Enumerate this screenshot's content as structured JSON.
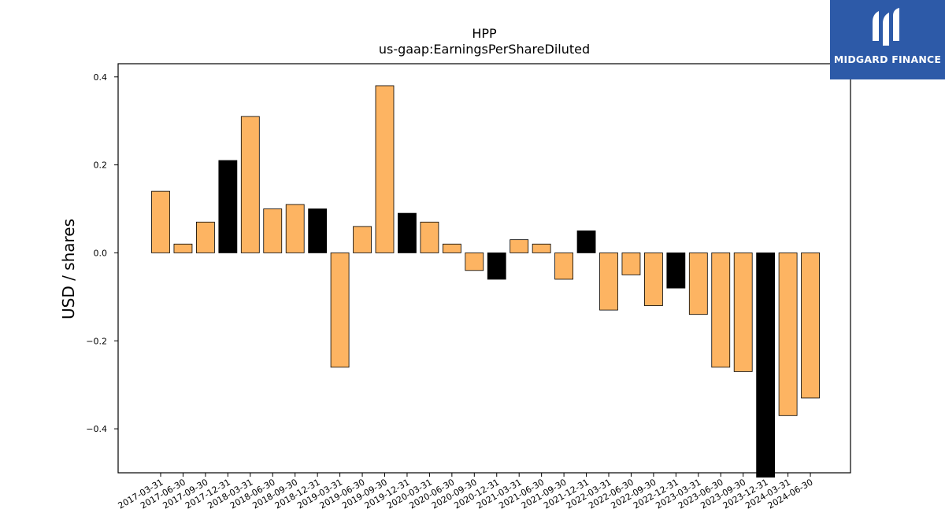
{
  "logo": {
    "text": "MIDGARD FINANCE",
    "icon": "midgard-logo-icon",
    "background": "#2d5aa8"
  },
  "chart_data": {
    "type": "bar",
    "title": "HPP",
    "subtitle": "us-gaap:EarningsPerShareDiluted",
    "xlabel": "",
    "ylabel": "USD / shares",
    "ylim": [
      -0.5,
      0.43
    ],
    "yticks": [
      -0.4,
      -0.2,
      0.0,
      0.2,
      0.4
    ],
    "ytick_labels": [
      "−0.4",
      "−0.2",
      "0.0",
      "0.2",
      "0.4"
    ],
    "grid": false,
    "colors": {
      "quarter": "#fdb462",
      "year_end": "#000000",
      "edge": "#000000"
    },
    "categories": [
      "2017-03-31",
      "2017-06-30",
      "2017-09-30",
      "2017-12-31",
      "2018-03-31",
      "2018-06-30",
      "2018-09-30",
      "2018-12-31",
      "2019-03-31",
      "2019-06-30",
      "2019-09-30",
      "2019-12-31",
      "2020-03-31",
      "2020-06-30",
      "2020-09-30",
      "2020-12-31",
      "2021-03-31",
      "2021-06-30",
      "2021-09-30",
      "2021-12-31",
      "2022-03-31",
      "2022-06-30",
      "2022-09-30",
      "2022-12-31",
      "2023-03-31",
      "2023-06-30",
      "2023-09-30",
      "2023-12-31",
      "2024-03-31",
      "2024-06-30"
    ],
    "values": [
      0.14,
      0.02,
      0.07,
      0.21,
      0.31,
      0.1,
      0.11,
      0.1,
      -0.26,
      0.06,
      0.38,
      0.09,
      0.07,
      0.02,
      -0.04,
      -0.06,
      0.03,
      0.02,
      -0.06,
      0.05,
      -0.13,
      -0.05,
      -0.12,
      -0.08,
      -0.14,
      -0.26,
      -0.27,
      -0.51,
      -0.37,
      -0.33
    ],
    "year_end": [
      false,
      false,
      false,
      true,
      false,
      false,
      false,
      true,
      false,
      false,
      false,
      true,
      false,
      false,
      false,
      true,
      false,
      false,
      false,
      true,
      false,
      false,
      false,
      true,
      false,
      false,
      false,
      true,
      false,
      false
    ]
  }
}
